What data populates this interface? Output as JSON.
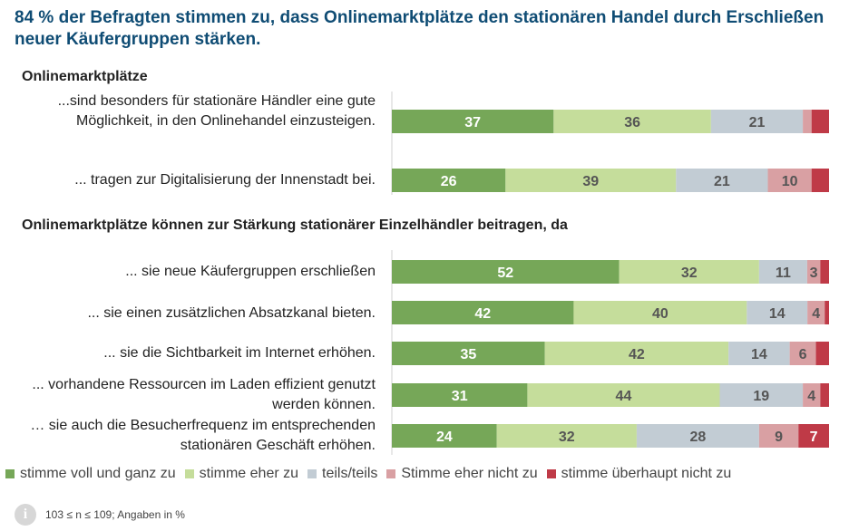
{
  "title": "84 % der Befragten stimmen zu, dass Onlinemarktplätze den stationären Handel durch Erschließen neuer Käufergruppen stärken.",
  "section1": "Onlinemarktplätze",
  "section2": "Onlinemarktplätze können zur Stärkung stationärer Einzelhändler beitragen, da",
  "footnote": "103 ≤ n ≤ 109; Angaben in %",
  "colors": [
    "#76a758",
    "#c5dd9b",
    "#c2ccd4",
    "#d9a0a3",
    "#bf3a47"
  ],
  "chart_data": {
    "type": "bar",
    "stacked": true,
    "orientation": "horizontal",
    "series_names": [
      "stimme voll und ganz zu",
      "stimme eher zu",
      "teils/teils",
      "Stimme eher nicht zu",
      "stimme überhaupt nicht zu"
    ],
    "rows": [
      {
        "label": "...sind besonders für stationäre Händler eine gute Möglichkeit, in den Onlinehandel einzusteigen.",
        "values": [
          37,
          36,
          21,
          2,
          4
        ],
        "labels": [
          "37",
          "36",
          "21",
          "",
          ""
        ]
      },
      {
        "label": "... tragen zur Digitalisierung der Innenstadt bei.",
        "values": [
          26,
          39,
          21,
          10,
          4
        ],
        "labels": [
          "26",
          "39",
          "21",
          "10",
          ""
        ]
      },
      {
        "label": "... sie neue Käufergruppen erschließen",
        "values": [
          52,
          32,
          11,
          3,
          2
        ],
        "labels": [
          "52",
          "32",
          "11",
          "3",
          ""
        ]
      },
      {
        "label": "... sie einen zusätzlichen Absatzkanal bieten.",
        "values": [
          42,
          40,
          14,
          4,
          1
        ],
        "labels": [
          "42",
          "40",
          "14",
          "4",
          ""
        ]
      },
      {
        "label": "... sie die Sichtbarkeit im Internet erhöhen.",
        "values": [
          35,
          42,
          14,
          6,
          3
        ],
        "labels": [
          "35",
          "42",
          "14",
          "6",
          ""
        ]
      },
      {
        "label": "... vorhandene Ressourcen im Laden effizient genutzt werden können.",
        "values": [
          31,
          44,
          19,
          4,
          2
        ],
        "labels": [
          "31",
          "44",
          "19",
          "4",
          ""
        ]
      },
      {
        "label": "… sie auch die Besucherfrequenz im entsprechenden stationären Geschäft erhöhen.",
        "values": [
          24,
          32,
          28,
          9,
          7
        ],
        "labels": [
          "24",
          "32",
          "28",
          "9",
          "7"
        ]
      }
    ]
  }
}
